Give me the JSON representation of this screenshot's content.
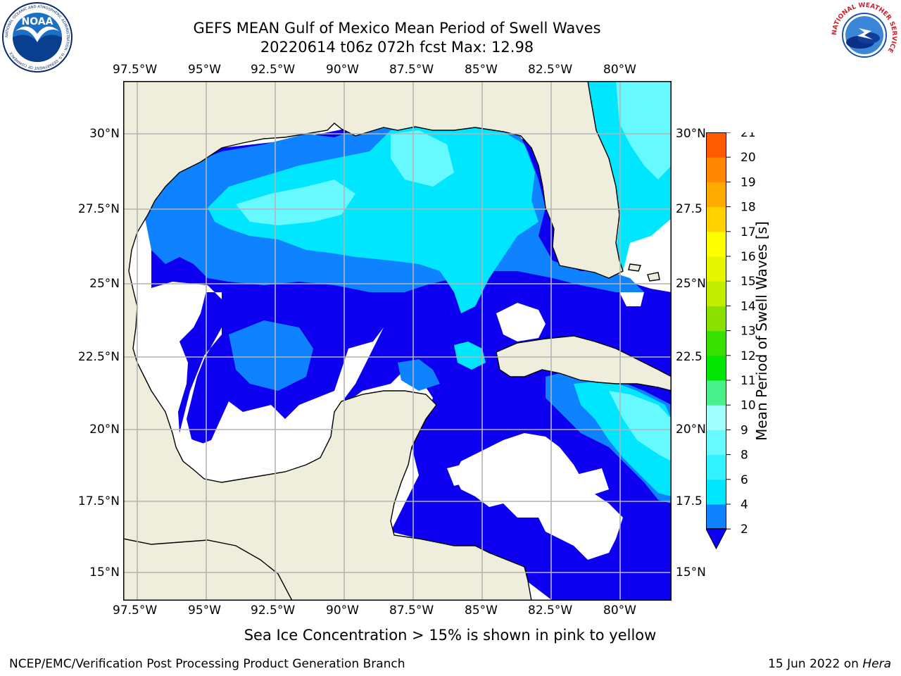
{
  "header": {
    "title_line1": "GEFS MEAN Gulf of Mexico Mean Period of Swell Waves",
    "title_line2": "20220614 t06z 072h fcst   Max: 12.98",
    "noaa_logo_text": "NOAA",
    "noaa_ring_text": "NATIONAL OCEANIC AND ATMOSPHERIC ADMINISTRATION · U.S. DEPARTMENT OF COMMERCE",
    "nws_ring_text": "NATIONAL WEATHER SERVICE"
  },
  "map": {
    "lon_labels": [
      "97.5°W",
      "95°W",
      "92.5°W",
      "90°W",
      "87.5°W",
      "85°W",
      "82.5°W",
      "80°W"
    ],
    "lat_labels_left": [
      "30°N",
      "27.5°N",
      "25°N",
      "22.5°N",
      "20°N",
      "17.5°N",
      "15°N"
    ],
    "lat_labels_right": [
      "30°N",
      "27.5",
      "25°N",
      "22.5",
      "20°N",
      "17.5",
      "15°N"
    ],
    "land_color": "#efeddb",
    "grid_color": "#b4b4b4"
  },
  "colorbar": {
    "label": "Mean Period of Swell Waves [s]",
    "ticks": [
      "2",
      "4",
      "6",
      "8",
      "9",
      "10",
      "11",
      "12",
      "13",
      "14",
      "15",
      "16",
      "17",
      "18",
      "19",
      "20",
      "21"
    ],
    "colors": [
      "#0f82ff",
      "#00e6ff",
      "#33f2ff",
      "#66f9ff",
      "#a0ffff",
      "#48f08c",
      "#00e600",
      "#38e000",
      "#8ce000",
      "#c2ec00",
      "#e6f500",
      "#ffff00",
      "#ffd200",
      "#ffaa00",
      "#ff8800",
      "#ff5a00",
      "#ff2a00",
      "#ff0000"
    ],
    "under_color": "#0d00f0"
  },
  "caption": "Sea Ice Concentration > 15% is shown in pink to yellow",
  "footer": {
    "left": "NCEP/EMC/Verification Post Processing Product Generation Branch",
    "right_date": "15 Jun 2022 on ",
    "right_host": "Hera"
  }
}
